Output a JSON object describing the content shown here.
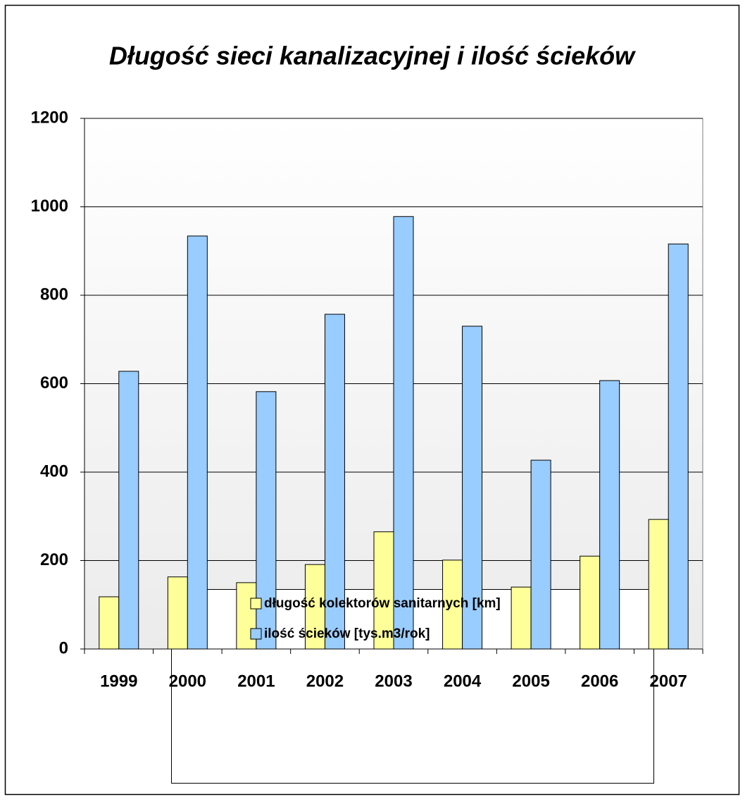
{
  "chart_data": {
    "type": "bar",
    "title": "Długość sieci kanalizacyjnej i ilość ścieków",
    "categories": [
      "1999",
      "2000",
      "2001",
      "2002",
      "2003",
      "2004",
      "2005",
      "2006",
      "2007"
    ],
    "series": [
      {
        "name": "długość kolektorów sanitarnych [km]",
        "color": "#ffff99",
        "values": [
          118,
          163,
          150,
          191,
          265,
          201,
          140,
          210,
          293
        ]
      },
      {
        "name": "ilość ścieków [tys.m3/rok]",
        "color": "#99ccff",
        "values": [
          628,
          934,
          582,
          757,
          978,
          730,
          427,
          607,
          916
        ]
      }
    ],
    "ylim": [
      0,
      1200
    ],
    "yticks": [
      0,
      200,
      400,
      600,
      800,
      1000,
      1200
    ],
    "grid": true,
    "legend": "bottom"
  }
}
